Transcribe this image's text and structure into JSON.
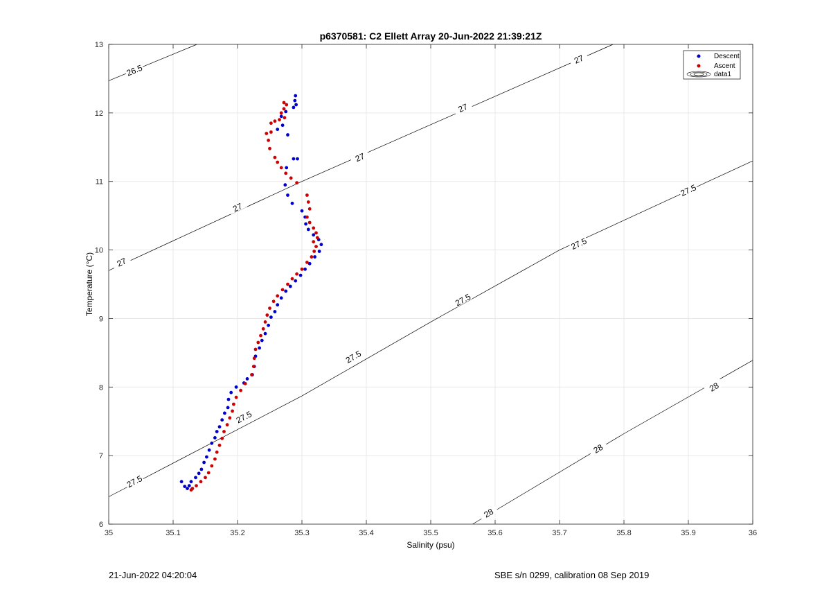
{
  "chart_data": {
    "type": "scatter",
    "title": "p6370581: C2 Ellett Array 20-Jun-2022 21:39:21Z",
    "xlabel": "Salinity (psu)",
    "ylabel": "Temperature (°C)",
    "xlim": [
      35,
      36
    ],
    "ylim": [
      6,
      13
    ],
    "x_ticks": [
      "35",
      "35.1",
      "35.2",
      "35.3",
      "35.4",
      "35.5",
      "35.6",
      "35.7",
      "35.8",
      "35.9",
      "36"
    ],
    "y_ticks": [
      "6",
      "7",
      "8",
      "9",
      "10",
      "11",
      "12",
      "13"
    ],
    "grid": true,
    "legend_position": "top-right",
    "legend": [
      "Descent",
      "Ascent",
      "data1"
    ],
    "series": [
      {
        "name": "Descent",
        "color": "#0000cc",
        "marker": "dot",
        "points": [
          [
            35.29,
            12.25
          ],
          [
            35.289,
            12.18
          ],
          [
            35.291,
            12.12
          ],
          [
            35.287,
            12.08
          ],
          [
            35.275,
            12.02
          ],
          [
            35.268,
            11.95
          ],
          [
            35.27,
            11.82
          ],
          [
            35.262,
            11.76
          ],
          [
            35.278,
            11.68
          ],
          [
            35.287,
            11.33
          ],
          [
            35.293,
            11.33
          ],
          [
            35.276,
            11.2
          ],
          [
            35.274,
            10.95
          ],
          [
            35.278,
            10.8
          ],
          [
            35.285,
            10.68
          ],
          [
            35.3,
            10.57
          ],
          [
            35.305,
            10.48
          ],
          [
            35.306,
            10.38
          ],
          [
            35.31,
            10.3
          ],
          [
            35.318,
            10.22
          ],
          [
            35.326,
            10.15
          ],
          [
            35.33,
            10.08
          ],
          [
            35.327,
            9.98
          ],
          [
            35.32,
            9.9
          ],
          [
            35.312,
            9.8
          ],
          [
            35.305,
            9.72
          ],
          [
            35.298,
            9.63
          ],
          [
            35.29,
            9.55
          ],
          [
            35.282,
            9.47
          ],
          [
            35.275,
            9.4
          ],
          [
            35.268,
            9.3
          ],
          [
            35.262,
            9.2
          ],
          [
            35.258,
            9.1
          ],
          [
            35.252,
            9.02
          ],
          [
            35.248,
            8.9
          ],
          [
            35.243,
            8.78
          ],
          [
            35.238,
            8.68
          ],
          [
            35.234,
            8.57
          ],
          [
            35.228,
            8.45
          ],
          [
            35.226,
            8.3
          ],
          [
            35.223,
            8.18
          ],
          [
            35.215,
            8.12
          ],
          [
            35.21,
            8.06
          ],
          [
            35.198,
            8.0
          ],
          [
            35.19,
            7.92
          ],
          [
            35.186,
            7.82
          ],
          [
            35.185,
            7.7
          ],
          [
            35.18,
            7.62
          ],
          [
            35.176,
            7.52
          ],
          [
            35.172,
            7.42
          ],
          [
            35.168,
            7.35
          ],
          [
            35.165,
            7.26
          ],
          [
            35.16,
            7.18
          ],
          [
            35.156,
            7.08
          ],
          [
            35.152,
            6.98
          ],
          [
            35.148,
            6.9
          ],
          [
            35.144,
            6.8
          ],
          [
            35.14,
            6.74
          ],
          [
            35.135,
            6.68
          ],
          [
            35.128,
            6.62
          ],
          [
            35.125,
            6.56
          ],
          [
            35.122,
            6.52
          ],
          [
            35.113,
            6.62
          ],
          [
            35.118,
            6.55
          ]
        ]
      },
      {
        "name": "Ascent",
        "color": "#cc0000",
        "marker": "dot",
        "points": [
          [
            35.272,
            12.15
          ],
          [
            35.276,
            12.12
          ],
          [
            35.272,
            12.06
          ],
          [
            35.268,
            12.0
          ],
          [
            35.273,
            11.93
          ],
          [
            35.265,
            11.9
          ],
          [
            35.258,
            11.88
          ],
          [
            35.252,
            11.85
          ],
          [
            35.252,
            11.72
          ],
          [
            35.245,
            11.7
          ],
          [
            35.248,
            11.6
          ],
          [
            35.25,
            11.48
          ],
          [
            35.258,
            11.35
          ],
          [
            35.262,
            11.28
          ],
          [
            35.268,
            11.2
          ],
          [
            35.275,
            11.12
          ],
          [
            35.283,
            11.05
          ],
          [
            35.292,
            10.98
          ],
          [
            35.308,
            10.8
          ],
          [
            35.31,
            10.7
          ],
          [
            35.312,
            10.6
          ],
          [
            35.308,
            10.48
          ],
          [
            35.312,
            10.4
          ],
          [
            35.318,
            10.32
          ],
          [
            35.322,
            10.25
          ],
          [
            35.324,
            10.18
          ],
          [
            35.318,
            10.12
          ],
          [
            35.322,
            10.05
          ],
          [
            35.319,
            9.98
          ],
          [
            35.315,
            9.9
          ],
          [
            35.308,
            9.82
          ],
          [
            35.3,
            9.72
          ],
          [
            35.292,
            9.65
          ],
          [
            35.285,
            9.58
          ],
          [
            35.278,
            9.5
          ],
          [
            35.27,
            9.42
          ],
          [
            35.262,
            9.33
          ],
          [
            35.256,
            9.25
          ],
          [
            35.25,
            9.15
          ],
          [
            35.246,
            9.05
          ],
          [
            35.243,
            8.95
          ],
          [
            35.24,
            8.85
          ],
          [
            35.236,
            8.75
          ],
          [
            35.232,
            8.65
          ],
          [
            35.228,
            8.55
          ],
          [
            35.226,
            8.42
          ],
          [
            35.225,
            8.3
          ],
          [
            35.222,
            8.18
          ],
          [
            35.212,
            8.05
          ],
          [
            35.205,
            7.95
          ],
          [
            35.198,
            7.85
          ],
          [
            35.194,
            7.75
          ],
          [
            35.192,
            7.65
          ],
          [
            35.188,
            7.55
          ],
          [
            35.184,
            7.45
          ],
          [
            35.179,
            7.35
          ],
          [
            35.176,
            7.25
          ],
          [
            35.172,
            7.15
          ],
          [
            35.168,
            7.05
          ],
          [
            35.165,
            6.95
          ],
          [
            35.16,
            6.85
          ],
          [
            35.155,
            6.75
          ],
          [
            35.15,
            6.68
          ],
          [
            35.143,
            6.62
          ],
          [
            35.136,
            6.56
          ],
          [
            35.13,
            6.52
          ],
          [
            35.128,
            6.5
          ]
        ]
      }
    ],
    "isopycnals": [
      {
        "label": "26.5",
        "points": [
          [
            35.0,
            12.47
          ],
          [
            35.137,
            13.0
          ]
        ],
        "labels_at": [
          [
            35.04,
            12.62,
            "26.5"
          ]
        ]
      },
      {
        "label": "27",
        "points": [
          [
            35.0,
            9.7
          ],
          [
            35.3,
            11.0
          ],
          [
            35.783,
            13.0
          ]
        ],
        "labels_at": [
          [
            35.02,
            9.82,
            "27"
          ],
          [
            35.2,
            10.62,
            "27"
          ],
          [
            35.39,
            11.35,
            "27"
          ],
          [
            35.55,
            12.07,
            "27"
          ],
          [
            35.73,
            12.78,
            "27"
          ]
        ]
      },
      {
        "label": "27.5",
        "points": [
          [
            35.0,
            6.4
          ],
          [
            35.3,
            7.87
          ],
          [
            35.5,
            8.95
          ],
          [
            35.7,
            10.0
          ],
          [
            36.0,
            11.3
          ]
        ],
        "labels_at": [
          [
            35.04,
            6.62,
            "27.5"
          ],
          [
            35.21,
            7.56,
            "27.5"
          ],
          [
            35.38,
            8.44,
            "27.5"
          ],
          [
            35.55,
            9.27,
            "27.5"
          ],
          [
            35.73,
            10.09,
            "27.5"
          ],
          [
            35.9,
            10.87,
            "27.5"
          ]
        ]
      },
      {
        "label": "28",
        "points": [
          [
            35.565,
            6.0
          ],
          [
            35.8,
            7.32
          ],
          [
            36.0,
            8.39
          ]
        ],
        "labels_at": [
          [
            35.59,
            6.16,
            "28"
          ],
          [
            35.76,
            7.1,
            "28"
          ],
          [
            35.94,
            8.0,
            "28"
          ]
        ]
      }
    ]
  },
  "footer": {
    "left": "21-Jun-2022 04:20:04",
    "right": "SBE s/n 0299, calibration 08 Sep 2019"
  }
}
